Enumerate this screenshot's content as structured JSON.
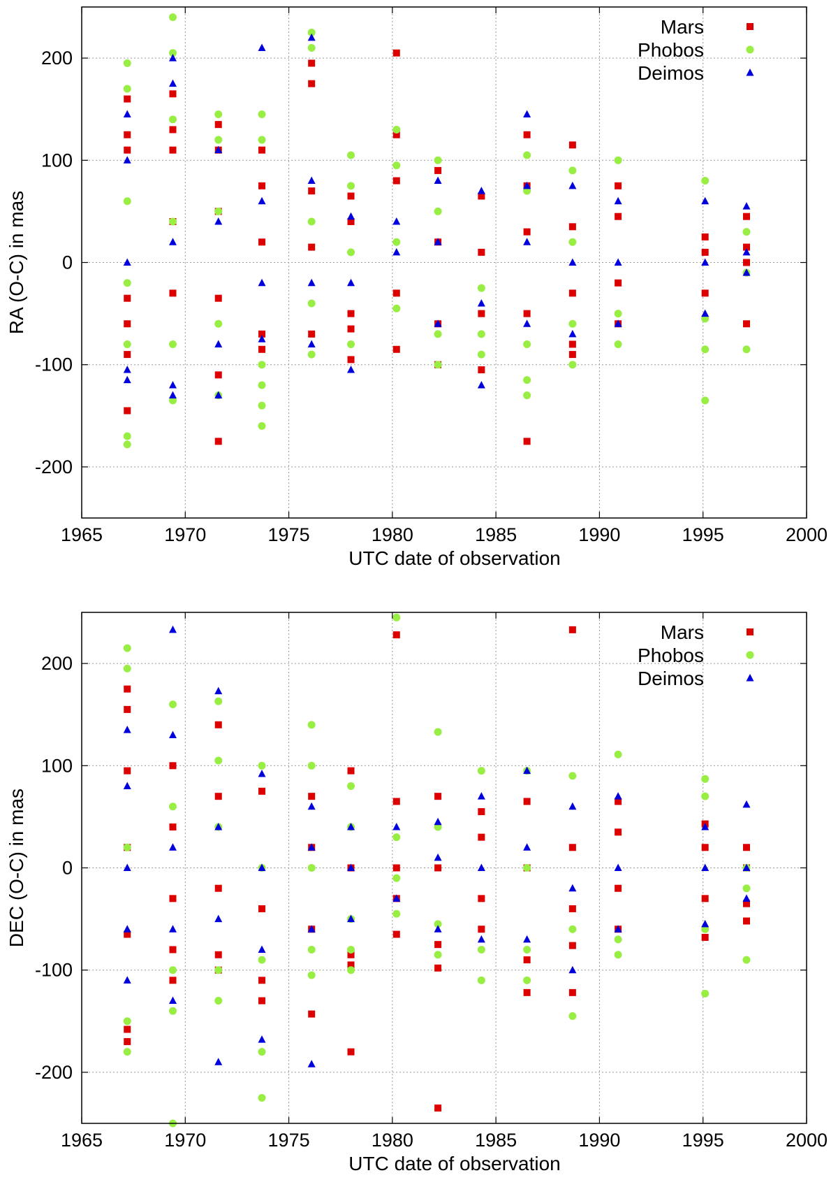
{
  "chart_data": [
    {
      "type": "scatter",
      "xlabel": "UTC date of observation",
      "ylabel": "RA (O-C) in mas",
      "xlim": [
        1965,
        2000
      ],
      "ylim": [
        -250,
        250
      ],
      "xticks": [
        "1965",
        "1970",
        "1975",
        "1980",
        "1985",
        "1990",
        "1995",
        "2000"
      ],
      "yticks": [
        "-200",
        "-100",
        "0",
        "100",
        "200"
      ],
      "grid": true,
      "legend_position": "top-right",
      "series": [
        {
          "name": "Mars",
          "marker": "square",
          "color": "#dd0000",
          "x": [
            1967.2,
            1967.2,
            1967.2,
            1967.2,
            1967.2,
            1967.2,
            1967.2,
            1969.4,
            1969.4,
            1969.4,
            1969.4,
            1969.4,
            1971.6,
            1971.6,
            1971.6,
            1971.6,
            1971.6,
            1971.6,
            1973.7,
            1973.7,
            1973.7,
            1973.7,
            1973.7,
            1976.1,
            1976.1,
            1976.1,
            1976.1,
            1976.1,
            1978,
            1978,
            1978,
            1978,
            1978,
            1980.2,
            1980.2,
            1980.2,
            1980.2,
            1980.2,
            1982.2,
            1982.2,
            1982.2,
            1982.2,
            1984.3,
            1984.3,
            1984.3,
            1984.3,
            1986.5,
            1986.5,
            1986.5,
            1986.5,
            1986.5,
            1988.7,
            1988.7,
            1988.7,
            1988.7,
            1988.7,
            1990.9,
            1990.9,
            1990.9,
            1990.9,
            1995.1,
            1995.1,
            1995.1,
            1997.1,
            1997.1,
            1997.1,
            1997.1
          ],
          "y": [
            -145,
            -90,
            -60,
            -35,
            110,
            125,
            160,
            -30,
            40,
            110,
            130,
            165,
            -175,
            -110,
            -35,
            50,
            110,
            135,
            -85,
            -70,
            20,
            75,
            110,
            -70,
            15,
            70,
            175,
            195,
            -95,
            -65,
            -50,
            40,
            65,
            -85,
            -30,
            80,
            125,
            205,
            -100,
            -60,
            20,
            90,
            -105,
            -50,
            10,
            65,
            -175,
            -50,
            30,
            75,
            125,
            -90,
            -80,
            -30,
            35,
            115,
            -60,
            -20,
            45,
            75,
            -30,
            10,
            25,
            -60,
            0,
            15,
            45
          ]
        },
        {
          "name": "Phobos",
          "marker": "circle",
          "color": "#99ee44",
          "x": [
            1967.2,
            1967.2,
            1967.2,
            1967.2,
            1967.2,
            1967.2,
            1967.2,
            1969.4,
            1969.4,
            1969.4,
            1969.4,
            1969.4,
            1969.4,
            1971.6,
            1971.6,
            1971.6,
            1971.6,
            1971.6,
            1973.7,
            1973.7,
            1973.7,
            1973.7,
            1973.7,
            1973.7,
            1976.1,
            1976.1,
            1976.1,
            1976.1,
            1976.1,
            1978,
            1978,
            1978,
            1978,
            1980.2,
            1980.2,
            1980.2,
            1980.2,
            1982.2,
            1982.2,
            1982.2,
            1982.2,
            1984.3,
            1984.3,
            1984.3,
            1986.5,
            1986.5,
            1986.5,
            1986.5,
            1986.5,
            1988.7,
            1988.7,
            1988.7,
            1988.7,
            1990.9,
            1990.9,
            1990.9,
            1995.1,
            1995.1,
            1995.1,
            1995.1,
            1997.1,
            1997.1,
            1997.1
          ],
          "y": [
            -178,
            -170,
            -80,
            -20,
            60,
            170,
            195,
            -135,
            -80,
            40,
            140,
            205,
            240,
            -130,
            -60,
            50,
            120,
            145,
            -160,
            -140,
            -120,
            -100,
            120,
            145,
            -90,
            -40,
            40,
            210,
            225,
            -80,
            10,
            75,
            105,
            -45,
            20,
            95,
            130,
            -100,
            -70,
            50,
            100,
            -90,
            -70,
            -25,
            -130,
            -115,
            -80,
            70,
            105,
            -100,
            -60,
            20,
            90,
            -80,
            -50,
            100,
            -135,
            -85,
            -55,
            80,
            -85,
            -10,
            30
          ]
        },
        {
          "name": "Deimos",
          "marker": "triangle",
          "color": "#0000dd",
          "x": [
            1967.2,
            1967.2,
            1967.2,
            1967.2,
            1967.2,
            1969.4,
            1969.4,
            1969.4,
            1969.4,
            1969.4,
            1971.6,
            1971.6,
            1971.6,
            1971.6,
            1973.7,
            1973.7,
            1973.7,
            1973.7,
            1976.1,
            1976.1,
            1976.1,
            1976.1,
            1978,
            1978,
            1978,
            1980.2,
            1980.2,
            1982.2,
            1982.2,
            1982.2,
            1984.3,
            1984.3,
            1984.3,
            1986.5,
            1986.5,
            1986.5,
            1986.5,
            1988.7,
            1988.7,
            1988.7,
            1990.9,
            1990.9,
            1990.9,
            1995.1,
            1995.1,
            1995.1,
            1997.1,
            1997.1,
            1997.1
          ],
          "y": [
            -115,
            -105,
            0,
            100,
            145,
            -130,
            -120,
            20,
            175,
            200,
            -130,
            -80,
            40,
            110,
            -75,
            -20,
            60,
            210,
            -80,
            -20,
            80,
            220,
            -105,
            -20,
            45,
            10,
            40,
            -60,
            20,
            80,
            -120,
            -40,
            70,
            -60,
            20,
            75,
            145,
            -70,
            0,
            75,
            -60,
            0,
            60,
            -50,
            0,
            60,
            -10,
            10,
            55
          ]
        }
      ]
    },
    {
      "type": "scatter",
      "xlabel": "UTC date of observation",
      "ylabel": "DEC (O-C) in mas",
      "xlim": [
        1965,
        2000
      ],
      "ylim": [
        -250,
        250
      ],
      "xticks": [
        "1965",
        "1970",
        "1975",
        "1980",
        "1985",
        "1990",
        "1995",
        "2000"
      ],
      "yticks": [
        "-200",
        "-100",
        "0",
        "100",
        "200"
      ],
      "grid": true,
      "legend_position": "top-right",
      "series": [
        {
          "name": "Mars",
          "marker": "square",
          "color": "#dd0000",
          "x": [
            1967.2,
            1967.2,
            1967.2,
            1967.2,
            1967.2,
            1967.2,
            1967.2,
            1969.4,
            1969.4,
            1969.4,
            1969.4,
            1969.4,
            1971.6,
            1971.6,
            1971.6,
            1971.6,
            1971.6,
            1973.7,
            1973.7,
            1973.7,
            1973.7,
            1976.1,
            1976.1,
            1976.1,
            1976.1,
            1978,
            1978,
            1978,
            1978,
            1978,
            1980.2,
            1980.2,
            1980.2,
            1980.2,
            1980.2,
            1982.2,
            1982.2,
            1982.2,
            1982.2,
            1982.2,
            1984.3,
            1984.3,
            1984.3,
            1984.3,
            1986.5,
            1986.5,
            1986.5,
            1986.5,
            1988.7,
            1988.7,
            1988.7,
            1988.7,
            1988.7,
            1990.9,
            1990.9,
            1990.9,
            1990.9,
            1995.1,
            1995.1,
            1995.1,
            1995.1,
            1997.1,
            1997.1,
            1997.1,
            1997.1
          ],
          "y": [
            -170,
            -158,
            -65,
            20,
            95,
            155,
            175,
            -110,
            -80,
            -30,
            40,
            100,
            -100,
            -85,
            -20,
            70,
            140,
            -130,
            -110,
            -40,
            75,
            -143,
            -60,
            20,
            70,
            -180,
            -95,
            -85,
            0,
            95,
            -65,
            -30,
            0,
            65,
            228,
            -235,
            -98,
            -75,
            0,
            70,
            -60,
            -30,
            30,
            55,
            -122,
            -90,
            0,
            65,
            -122,
            -76,
            -40,
            20,
            233,
            -60,
            -20,
            35,
            65,
            -68,
            -30,
            20,
            43,
            -52,
            -35,
            0,
            20
          ]
        },
        {
          "name": "Phobos",
          "marker": "circle",
          "color": "#99ee44",
          "x": [
            1967.2,
            1967.2,
            1967.2,
            1967.2,
            1967.2,
            1969.4,
            1969.4,
            1969.4,
            1969.4,
            1969.4,
            1971.6,
            1971.6,
            1971.6,
            1971.6,
            1971.6,
            1973.7,
            1973.7,
            1973.7,
            1973.7,
            1973.7,
            1976.1,
            1976.1,
            1976.1,
            1976.1,
            1976.1,
            1978,
            1978,
            1978,
            1978,
            1978,
            1980.2,
            1980.2,
            1980.2,
            1980.2,
            1982.2,
            1982.2,
            1982.2,
            1982.2,
            1984.3,
            1984.3,
            1984.3,
            1986.5,
            1986.5,
            1986.5,
            1986.5,
            1988.7,
            1988.7,
            1988.7,
            1990.9,
            1990.9,
            1990.9,
            1995.1,
            1995.1,
            1995.1,
            1995.1,
            1997.1,
            1997.1,
            1997.1
          ],
          "y": [
            -180,
            -150,
            20,
            195,
            215,
            -250,
            -140,
            -100,
            60,
            160,
            -130,
            -100,
            40,
            105,
            163,
            -225,
            -180,
            -90,
            0,
            100,
            -105,
            -80,
            0,
            100,
            140,
            -100,
            -80,
            -50,
            40,
            80,
            -45,
            -10,
            30,
            245,
            -85,
            -55,
            40,
            133,
            -110,
            -80,
            95,
            -110,
            -80,
            0,
            95,
            -145,
            -60,
            90,
            -85,
            -70,
            111,
            -123,
            -60,
            70,
            87,
            -90,
            -20,
            0
          ]
        },
        {
          "name": "Deimos",
          "marker": "triangle",
          "color": "#0000dd",
          "x": [
            1967.2,
            1967.2,
            1967.2,
            1967.2,
            1967.2,
            1969.4,
            1969.4,
            1969.4,
            1969.4,
            1969.4,
            1971.6,
            1971.6,
            1971.6,
            1971.6,
            1973.7,
            1973.7,
            1973.7,
            1973.7,
            1976.1,
            1976.1,
            1976.1,
            1976.1,
            1978,
            1978,
            1978,
            1980.2,
            1980.2,
            1982.2,
            1982.2,
            1982.2,
            1984.3,
            1984.3,
            1984.3,
            1986.5,
            1986.5,
            1986.5,
            1988.7,
            1988.7,
            1988.7,
            1990.9,
            1990.9,
            1990.9,
            1995.1,
            1995.1,
            1995.1,
            1997.1,
            1997.1,
            1997.1
          ],
          "y": [
            -110,
            -60,
            0,
            80,
            135,
            -130,
            -60,
            20,
            130,
            233,
            -190,
            -50,
            40,
            173,
            -168,
            -80,
            0,
            92,
            -192,
            -60,
            20,
            60,
            -50,
            0,
            40,
            -30,
            40,
            -60,
            10,
            45,
            -70,
            0,
            70,
            -70,
            20,
            95,
            -100,
            -20,
            60,
            -60,
            0,
            70,
            -55,
            0,
            40,
            -30,
            0,
            62
          ]
        }
      ]
    }
  ]
}
